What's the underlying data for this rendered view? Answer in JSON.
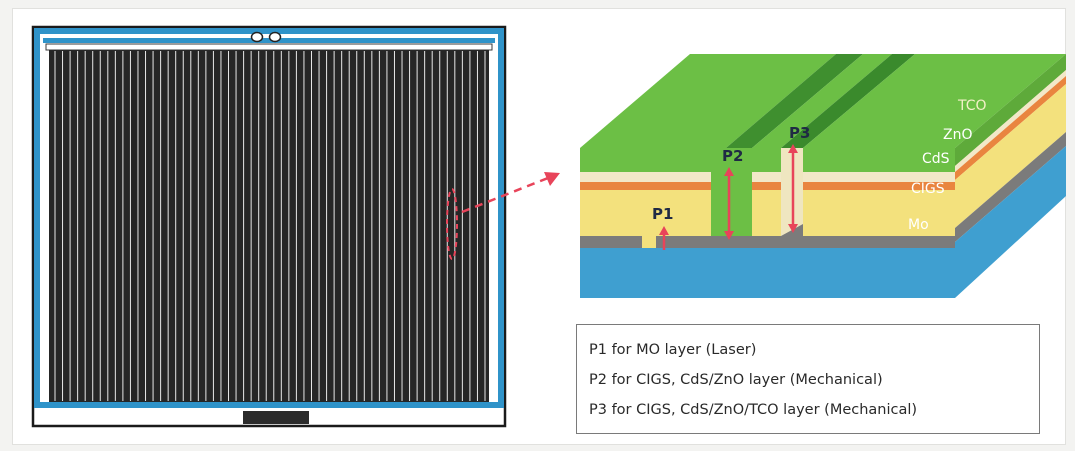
{
  "layers": {
    "tco": "TCO",
    "zno": "ZnO",
    "cds": "CdS",
    "cigs": "CIGS",
    "mo": "Mo"
  },
  "scribes": {
    "p1": "P1",
    "p2": "P2",
    "p3": "P3"
  },
  "legend": {
    "items": [
      "P1 for MO layer (Laser)",
      "P2 for CIGS, CdS/ZnO layer (Mechanical)",
      "P3 for CIGS, CdS/ZnO/TCO layer (Mechanical)"
    ]
  },
  "colors": {
    "tco": "#6cbf45",
    "zno": "#f2e8c8",
    "cds": "#e9853f",
    "cigs": "#f3e17d",
    "mo": "#7b7b7b",
    "substrate": "#3f9fd0",
    "arrow": "#e8445a",
    "cell_dark": "#262626"
  }
}
